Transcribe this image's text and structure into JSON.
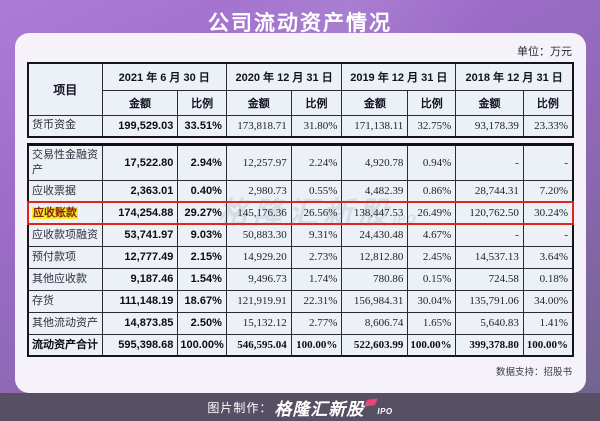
{
  "title": "公司流动资产情况",
  "unit_label": "单位：万元",
  "watermark": {
    "text": "格隆汇新股",
    "suffix": "IPO"
  },
  "colors": {
    "background_top": "#ab7cd5",
    "background_bottom": "#6f6389",
    "card": "#f5f3f9",
    "table_bg": "#ecf0f7",
    "highlight_border": "#e1251b",
    "highlight_fill": "#f4f227",
    "footer_bar": "#575064",
    "brand_accent": "#e8457a"
  },
  "chart_data": {
    "type": "table",
    "title": "公司流动资产情况",
    "unit": "万元",
    "item_header": "项目",
    "amount_label": "金额",
    "ratio_label": "比例",
    "periods": [
      "2021 年 6 月 30 日",
      "2020 年 12 月 31 日",
      "2019 年 12 月 31 日",
      "2018 年 12 月 31 日"
    ],
    "rows": [
      {
        "label": "货币资金",
        "highlight": false,
        "total": false,
        "values": [
          "199,529.03",
          "33.51%",
          "173,818.71",
          "31.80%",
          "171,138.11",
          "32.75%",
          "93,178.39",
          "23.33%"
        ]
      },
      {
        "label": "交易性金融资产",
        "highlight": false,
        "total": false,
        "values": [
          "17,522.80",
          "2.94%",
          "12,257.97",
          "2.24%",
          "4,920.78",
          "0.94%",
          "-",
          "-"
        ]
      },
      {
        "label": "应收票据",
        "highlight": false,
        "total": false,
        "values": [
          "2,363.01",
          "0.40%",
          "2,980.73",
          "0.55%",
          "4,482.39",
          "0.86%",
          "28,744.31",
          "7.20%"
        ]
      },
      {
        "label": "应收账款",
        "highlight": true,
        "total": false,
        "values": [
          "174,254.88",
          "29.27%",
          "145,176.36",
          "26.56%",
          "138,447.53",
          "26.49%",
          "120,762.50",
          "30.24%"
        ]
      },
      {
        "label": "应收款项融资",
        "highlight": false,
        "total": false,
        "values": [
          "53,741.97",
          "9.03%",
          "50,883.30",
          "9.31%",
          "24,430.48",
          "4.67%",
          "-",
          "-"
        ]
      },
      {
        "label": "预付款项",
        "highlight": false,
        "total": false,
        "values": [
          "12,777.49",
          "2.15%",
          "14,929.20",
          "2.73%",
          "12,812.80",
          "2.45%",
          "14,537.13",
          "3.64%"
        ]
      },
      {
        "label": "其他应收款",
        "highlight": false,
        "total": false,
        "values": [
          "9,187.46",
          "1.54%",
          "9,496.73",
          "1.74%",
          "780.86",
          "0.15%",
          "724.58",
          "0.18%"
        ]
      },
      {
        "label": "存货",
        "highlight": false,
        "total": false,
        "values": [
          "111,148.19",
          "18.67%",
          "121,919.91",
          "22.31%",
          "156,984.31",
          "30.04%",
          "135,791.06",
          "34.00%"
        ]
      },
      {
        "label": "其他流动资产",
        "highlight": false,
        "total": false,
        "values": [
          "14,873.85",
          "2.50%",
          "15,132.12",
          "2.77%",
          "8,606.74",
          "1.65%",
          "5,640.83",
          "1.41%"
        ]
      },
      {
        "label": "流动资产合计",
        "highlight": false,
        "total": true,
        "values": [
          "595,398.68",
          "100.00%",
          "546,595.04",
          "100.00%",
          "522,603.99",
          "100.00%",
          "399,378.80",
          "100.00%"
        ]
      }
    ]
  },
  "footer_note": "数据支持：招股书",
  "footer": {
    "credit_label": "图片制作：",
    "brand": "格隆汇新股",
    "brand_suffix": "IPO"
  }
}
